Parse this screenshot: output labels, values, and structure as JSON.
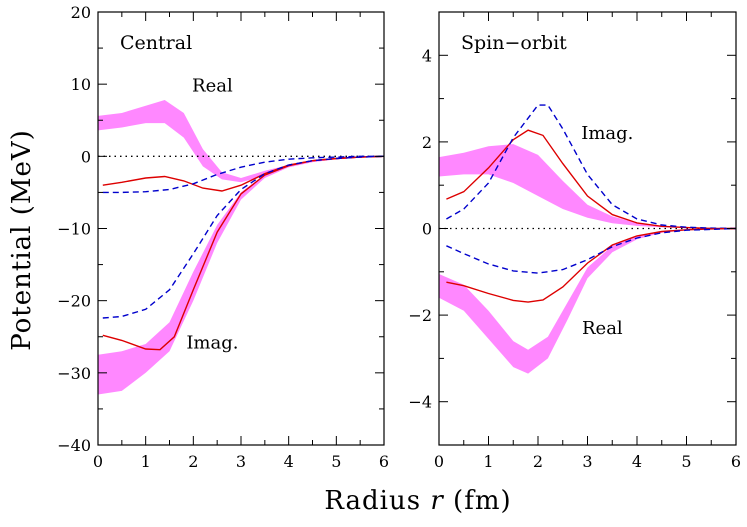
{
  "figure": {
    "ylabel": "Potential (MeV)",
    "xlabel": "Radius r (fm)",
    "xlabel_plain": "Radius ",
    "xlabel_var": "r",
    "xlabel_unit": " (fm)"
  },
  "colors": {
    "band": "#ff88ff",
    "solid": "#dd0000",
    "dashed": "#0000cc",
    "reference": "#000000"
  },
  "chart_data": [
    {
      "type": "line",
      "panel_label": "Central",
      "xlim": [
        0,
        6
      ],
      "ylim": [
        -40,
        20
      ],
      "xticks": [
        0,
        1,
        2,
        3,
        4,
        5,
        6
      ],
      "yticks": [
        -40,
        -30,
        -20,
        -10,
        0,
        10,
        20
      ],
      "grid": false,
      "reference_line": {
        "y": 0,
        "style": "dotted"
      },
      "annotations": [
        {
          "text": "Real",
          "x": 2.4,
          "y": 9.8
        },
        {
          "text": "Imag.",
          "x": 2.4,
          "y": -25.8
        }
      ],
      "bands": [
        {
          "component": "Real",
          "x": [
            0.0,
            0.5,
            1.0,
            1.4,
            1.8,
            2.2,
            2.6,
            3.0,
            3.5,
            4.0,
            4.5,
            5.0,
            5.5,
            6.0
          ],
          "upper": [
            5.6,
            6.0,
            7.0,
            7.8,
            6.0,
            1.0,
            -2.2,
            -3.0,
            -2.0,
            -1.2,
            -0.6,
            -0.3,
            -0.1,
            0.0
          ],
          "lower": [
            3.6,
            4.0,
            4.6,
            4.6,
            2.6,
            -1.4,
            -3.2,
            -3.6,
            -2.7,
            -1.5,
            -0.8,
            -0.4,
            -0.2,
            0.0
          ]
        },
        {
          "component": "Imag.",
          "x": [
            0.0,
            0.5,
            1.0,
            1.5,
            2.0,
            2.5,
            3.0,
            3.5,
            4.0,
            4.5,
            5.0,
            5.5,
            6.0
          ],
          "upper": [
            -27.5,
            -27.0,
            -26.0,
            -23.0,
            -16.0,
            -9.5,
            -5.0,
            -2.5,
            -1.2,
            -0.6,
            -0.3,
            -0.1,
            0.0
          ],
          "lower": [
            -33.0,
            -32.5,
            -30.0,
            -27.0,
            -20.0,
            -12.0,
            -6.0,
            -3.0,
            -1.5,
            -0.8,
            -0.4,
            -0.2,
            0.0
          ]
        }
      ],
      "series": [
        {
          "component": "Real",
          "style": "solid",
          "x": [
            0.1,
            0.5,
            1.0,
            1.4,
            1.8,
            2.2,
            2.6,
            3.0,
            3.5,
            4.0,
            4.5,
            5.0,
            5.5,
            6.0
          ],
          "y": [
            -4.0,
            -3.6,
            -3.0,
            -2.8,
            -3.4,
            -4.4,
            -4.8,
            -4.0,
            -2.4,
            -1.2,
            -0.6,
            -0.3,
            -0.1,
            0.0
          ]
        },
        {
          "component": "Imag.",
          "style": "solid",
          "x": [
            0.1,
            0.5,
            1.0,
            1.3,
            1.6,
            2.0,
            2.5,
            3.0,
            3.5,
            4.0,
            4.5,
            5.0,
            5.5,
            6.0
          ],
          "y": [
            -24.8,
            -25.5,
            -26.7,
            -26.8,
            -25.0,
            -18.5,
            -10.5,
            -5.2,
            -2.6,
            -1.3,
            -0.6,
            -0.3,
            -0.1,
            0.0
          ]
        },
        {
          "component": "Real",
          "style": "dashed",
          "x": [
            0.1,
            0.5,
            1.0,
            1.5,
            2.0,
            2.5,
            3.0,
            3.5,
            4.0,
            4.5,
            5.0,
            5.5,
            6.0
          ],
          "y": [
            -5.0,
            -5.0,
            -4.9,
            -4.6,
            -3.8,
            -2.5,
            -1.5,
            -0.8,
            -0.4,
            -0.2,
            -0.1,
            0.0,
            0.0
          ]
        },
        {
          "component": "Imag.",
          "style": "dashed",
          "x": [
            0.1,
            0.5,
            1.0,
            1.5,
            2.0,
            2.5,
            3.0,
            3.5,
            4.0,
            4.5,
            5.0,
            5.5,
            6.0
          ],
          "y": [
            -22.4,
            -22.2,
            -21.2,
            -18.5,
            -13.5,
            -8.2,
            -4.6,
            -2.4,
            -1.2,
            -0.6,
            -0.3,
            -0.1,
            0.0
          ]
        }
      ]
    },
    {
      "type": "line",
      "panel_label": "Spin−orbit",
      "xlim": [
        0,
        6
      ],
      "ylim": [
        -5,
        5
      ],
      "xticks": [
        0,
        1,
        2,
        3,
        4,
        5,
        6
      ],
      "yticks": [
        -4,
        -2,
        0,
        2,
        4
      ],
      "grid": false,
      "reference_line": {
        "y": 0,
        "style": "dotted"
      },
      "annotations": [
        {
          "text": "Imag.",
          "x": 3.4,
          "y": 2.2
        },
        {
          "text": "Real",
          "x": 3.3,
          "y": -2.3
        }
      ],
      "bands": [
        {
          "component": "Imag.",
          "x": [
            0.0,
            0.5,
            1.0,
            1.5,
            2.0,
            2.5,
            3.0,
            3.5,
            4.0,
            4.5,
            5.0,
            5.5,
            6.0
          ],
          "upper": [
            1.65,
            1.75,
            1.9,
            1.95,
            1.7,
            1.1,
            0.55,
            0.28,
            0.13,
            0.06,
            0.03,
            0.01,
            0.0
          ],
          "lower": [
            1.2,
            1.25,
            1.25,
            1.05,
            0.75,
            0.45,
            0.25,
            0.12,
            0.06,
            0.03,
            0.01,
            0.0,
            0.0
          ]
        },
        {
          "component": "Real",
          "x": [
            0.0,
            0.5,
            1.0,
            1.5,
            1.8,
            2.2,
            2.6,
            3.0,
            3.5,
            4.0,
            4.5,
            5.0,
            5.5,
            6.0
          ],
          "upper": [
            -1.05,
            -1.3,
            -1.9,
            -2.6,
            -2.8,
            -2.5,
            -1.7,
            -0.9,
            -0.4,
            -0.18,
            -0.08,
            -0.03,
            -0.01,
            0.0
          ],
          "lower": [
            -1.6,
            -1.9,
            -2.55,
            -3.2,
            -3.35,
            -3.0,
            -2.1,
            -1.15,
            -0.55,
            -0.25,
            -0.1,
            -0.04,
            -0.01,
            0.0
          ]
        }
      ],
      "series": [
        {
          "component": "Imag.",
          "style": "solid",
          "x": [
            0.15,
            0.5,
            1.0,
            1.5,
            1.8,
            2.1,
            2.5,
            3.0,
            3.5,
            4.0,
            4.5,
            5.0,
            5.5,
            6.0
          ],
          "y": [
            0.68,
            0.85,
            1.4,
            2.05,
            2.27,
            2.15,
            1.5,
            0.75,
            0.32,
            0.13,
            0.05,
            0.02,
            0.0,
            0.0
          ]
        },
        {
          "component": "Imag.",
          "style": "dashed",
          "x": [
            0.15,
            0.5,
            1.0,
            1.5,
            2.0,
            2.2,
            2.5,
            3.0,
            3.5,
            4.0,
            4.5,
            5.0,
            5.5,
            6.0
          ],
          "y": [
            0.22,
            0.45,
            1.05,
            2.1,
            2.85,
            2.85,
            2.3,
            1.25,
            0.55,
            0.22,
            0.08,
            0.03,
            0.01,
            0.0
          ]
        },
        {
          "component": "Real",
          "style": "solid",
          "x": [
            0.15,
            0.5,
            1.0,
            1.5,
            1.8,
            2.1,
            2.5,
            3.0,
            3.5,
            4.0,
            4.5,
            5.0,
            5.5,
            6.0
          ],
          "y": [
            -1.24,
            -1.32,
            -1.5,
            -1.66,
            -1.7,
            -1.65,
            -1.35,
            -0.8,
            -0.38,
            -0.17,
            -0.07,
            -0.03,
            -0.01,
            0.0
          ]
        },
        {
          "component": "Real",
          "style": "dashed",
          "x": [
            0.15,
            0.5,
            1.0,
            1.5,
            2.0,
            2.5,
            3.0,
            3.5,
            4.0,
            4.5,
            5.0,
            5.5,
            6.0
          ],
          "y": [
            -0.4,
            -0.58,
            -0.82,
            -0.98,
            -1.03,
            -0.95,
            -0.72,
            -0.42,
            -0.22,
            -0.1,
            -0.04,
            -0.02,
            0.0
          ]
        }
      ]
    }
  ]
}
